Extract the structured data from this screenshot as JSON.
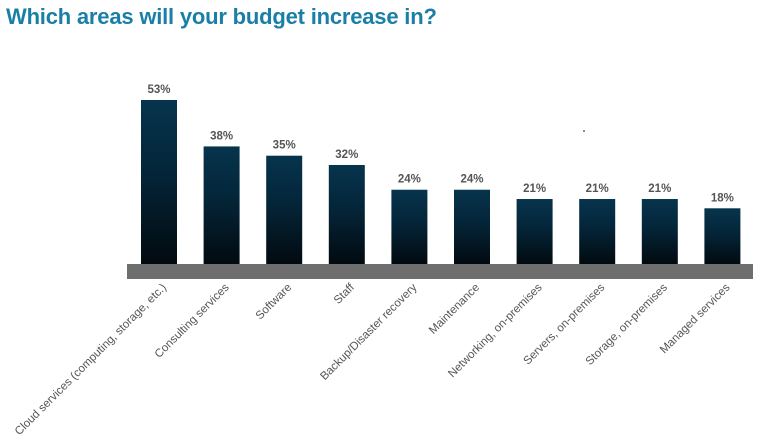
{
  "title": "Which areas will your budget increase in?",
  "colors": {
    "title": "#1a7fa6",
    "bar_top": "#06344d",
    "bar_bottom": "#020a10",
    "baseline": "#6e6e6e",
    "label": "#555555"
  },
  "chart_data": {
    "type": "bar",
    "title": "Which areas will your budget increase in?",
    "xlabel": "",
    "ylabel": "",
    "ylim": [
      0,
      53
    ],
    "grid": false,
    "legend": "none",
    "categories": [
      "Cloud services (computing, storage, etc.)",
      "Consulting services",
      "Software",
      "Staff",
      "Backup/Disaster recovery",
      "Maintenance",
      "Networking, on-premises",
      "Servers, on-premises",
      "Storage, on-premises",
      "Managed services"
    ],
    "values": [
      53,
      38,
      35,
      32,
      24,
      24,
      21,
      21,
      21,
      18
    ],
    "value_labels": [
      "53%",
      "38%",
      "35%",
      "32%",
      "24%",
      "24%",
      "21%",
      "21%",
      "21%",
      "18%"
    ],
    "unit": "%"
  }
}
